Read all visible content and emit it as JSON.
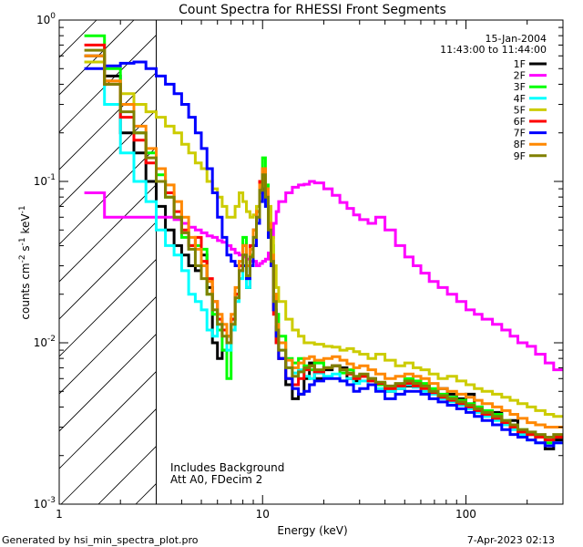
{
  "chart_data": {
    "type": "line",
    "title": "Count Spectra for RHESSI Front Segments",
    "xlabel": "Energy (keV)",
    "ylabel": "counts cm-2 s-1 keV-1",
    "xscale": "log",
    "yscale": "log",
    "xlim": [
      1,
      300
    ],
    "ylim": [
      0.001,
      1
    ],
    "x_ticks": [
      {
        "value": 1,
        "label": "1"
      },
      {
        "value": 10,
        "label": "10"
      },
      {
        "value": 100,
        "label": "100"
      }
    ],
    "y_ticks": [
      {
        "value": 1,
        "base": "10",
        "exp": "0"
      },
      {
        "value": 0.1,
        "base": "10",
        "exp": "-1"
      },
      {
        "value": 0.01,
        "base": "10",
        "exp": "-2"
      },
      {
        "value": 0.001,
        "base": "10",
        "exp": "-3"
      }
    ],
    "hatched_region": {
      "xmin": 1,
      "xmax": 3
    },
    "date": "15-Jan-2004",
    "time_range": "11:43:00 to 11:44:00",
    "annotations": [
      "Includes Background",
      "Att A0, FDecim 2"
    ],
    "footer_left": "Generated by hsi_min_spectra_plot.pro",
    "footer_right": "7-Apr-2023 02:13",
    "energy_bins": [
      1.33,
      1.67,
      2.0,
      2.33,
      2.67,
      3.0,
      3.33,
      3.67,
      4.0,
      4.33,
      4.67,
      5.0,
      5.33,
      5.67,
      6.0,
      6.33,
      6.67,
      7.0,
      7.33,
      7.67,
      8.0,
      8.33,
      8.67,
      9.0,
      9.33,
      9.67,
      10.0,
      10.33,
      10.67,
      11.0,
      11.33,
      11.67,
      12.0,
      13.0,
      14.0,
      15.0,
      16.0,
      17.0,
      18.0,
      20.0,
      22.0,
      24.0,
      26.0,
      28.0,
      30.0,
      33.0,
      36.0,
      40.0,
      45.0,
      50.0,
      55.0,
      60.0,
      66.0,
      73.0,
      81.0,
      90.0,
      100.0,
      110.0,
      120.0,
      135.0,
      150.0,
      165.0,
      180.0,
      200.0,
      220.0,
      245.0,
      270.0,
      300.0
    ],
    "series": [
      {
        "name": "1F",
        "color": "#000000",
        "values": [
          0.6,
          0.45,
          0.2,
          0.15,
          0.1,
          0.07,
          0.05,
          0.04,
          0.035,
          0.03,
          0.028,
          0.035,
          0.022,
          0.01,
          0.008,
          0.009,
          0.011,
          0.014,
          0.02,
          0.03,
          0.035,
          0.022,
          0.03,
          0.04,
          0.055,
          0.085,
          0.11,
          0.08,
          0.045,
          0.03,
          0.016,
          0.01,
          0.008,
          0.0055,
          0.0045,
          0.0048,
          0.006,
          0.0075,
          0.006,
          0.0068,
          0.0072,
          0.007,
          0.006,
          0.0058,
          0.0062,
          0.006,
          0.0056,
          0.005,
          0.0052,
          0.0054,
          0.0057,
          0.0055,
          0.005,
          0.0052,
          0.0048,
          0.0045,
          0.0048,
          0.004,
          0.0036,
          0.0037,
          0.0032,
          0.0033,
          0.0028,
          0.0027,
          0.0026,
          0.0022,
          0.0025
        ]
      },
      {
        "name": "2F",
        "color": "#ff00ff",
        "values": [
          0.085,
          0.06,
          0.06,
          0.06,
          0.06,
          0.06,
          0.06,
          0.058,
          0.055,
          0.052,
          0.05,
          0.048,
          0.046,
          0.045,
          0.043,
          0.042,
          0.04,
          0.038,
          0.036,
          0.035,
          0.034,
          0.033,
          0.032,
          0.032,
          0.03,
          0.031,
          0.032,
          0.033,
          0.036,
          0.045,
          0.055,
          0.065,
          0.075,
          0.085,
          0.092,
          0.095,
          0.096,
          0.1,
          0.098,
          0.09,
          0.082,
          0.074,
          0.068,
          0.062,
          0.058,
          0.055,
          0.06,
          0.05,
          0.04,
          0.034,
          0.03,
          0.027,
          0.024,
          0.022,
          0.02,
          0.018,
          0.016,
          0.015,
          0.014,
          0.013,
          0.012,
          0.011,
          0.01,
          0.0095,
          0.0085,
          0.0075,
          0.0068
        ]
      },
      {
        "name": "3F",
        "color": "#00ff00",
        "values": [
          0.8,
          0.5,
          0.3,
          0.2,
          0.15,
          0.11,
          0.08,
          0.06,
          0.045,
          0.04,
          0.04,
          0.038,
          0.02,
          0.015,
          0.012,
          0.009,
          0.006,
          0.012,
          0.02,
          0.03,
          0.045,
          0.025,
          0.035,
          0.05,
          0.065,
          0.1,
          0.14,
          0.095,
          0.06,
          0.04,
          0.02,
          0.015,
          0.011,
          0.008,
          0.0075,
          0.008,
          0.0072,
          0.0068,
          0.0075,
          0.007,
          0.0072,
          0.0065,
          0.0068,
          0.006,
          0.0063,
          0.0058,
          0.0055,
          0.0052,
          0.0055,
          0.006,
          0.0058,
          0.0056,
          0.0052,
          0.0048,
          0.0046,
          0.0044,
          0.0042,
          0.004,
          0.0038,
          0.0036,
          0.0033,
          0.0031,
          0.0029,
          0.0027,
          0.0026,
          0.0024,
          0.0026
        ]
      },
      {
        "name": "4F",
        "color": "#00ffff",
        "values": [
          0.55,
          0.3,
          0.15,
          0.1,
          0.075,
          0.05,
          0.04,
          0.035,
          0.028,
          0.02,
          0.018,
          0.016,
          0.012,
          0.011,
          0.014,
          0.012,
          0.009,
          0.012,
          0.018,
          0.025,
          0.03,
          0.022,
          0.03,
          0.045,
          0.06,
          0.085,
          0.1,
          0.07,
          0.045,
          0.03,
          0.018,
          0.012,
          0.009,
          0.007,
          0.0065,
          0.0068,
          0.0062,
          0.006,
          0.0065,
          0.0062,
          0.0064,
          0.0058,
          0.006,
          0.0056,
          0.0058,
          0.0055,
          0.0052,
          0.005,
          0.0052,
          0.0055,
          0.0053,
          0.005,
          0.0048,
          0.0045,
          0.0043,
          0.0041,
          0.0039,
          0.0037,
          0.0035,
          0.0033,
          0.0031,
          0.0029,
          0.0027,
          0.0025,
          0.0024,
          0.0023,
          0.0024
        ]
      },
      {
        "name": "5F",
        "color": "#cccc00",
        "values": [
          0.55,
          0.4,
          0.35,
          0.3,
          0.27,
          0.25,
          0.22,
          0.2,
          0.17,
          0.15,
          0.13,
          0.12,
          0.1,
          0.09,
          0.08,
          0.07,
          0.06,
          0.06,
          0.07,
          0.085,
          0.075,
          0.065,
          0.06,
          0.062,
          0.07,
          0.085,
          0.1,
          0.09,
          0.07,
          0.045,
          0.03,
          0.022,
          0.018,
          0.014,
          0.012,
          0.011,
          0.01,
          0.01,
          0.0098,
          0.0095,
          0.0094,
          0.009,
          0.0092,
          0.0088,
          0.0085,
          0.008,
          0.0085,
          0.0078,
          0.0072,
          0.0075,
          0.007,
          0.0068,
          0.0064,
          0.006,
          0.0062,
          0.0058,
          0.0055,
          0.0052,
          0.005,
          0.0048,
          0.0046,
          0.0044,
          0.0042,
          0.004,
          0.0038,
          0.0036,
          0.0035
        ]
      },
      {
        "name": "6F",
        "color": "#ff0000",
        "values": [
          0.7,
          0.4,
          0.25,
          0.18,
          0.13,
          0.1,
          0.085,
          0.065,
          0.05,
          0.04,
          0.045,
          0.032,
          0.025,
          0.018,
          0.014,
          0.012,
          0.01,
          0.014,
          0.02,
          0.03,
          0.04,
          0.03,
          0.04,
          0.05,
          0.065,
          0.1,
          0.12,
          0.085,
          0.05,
          0.03,
          0.015,
          0.01,
          0.008,
          0.006,
          0.0055,
          0.006,
          0.0068,
          0.0072,
          0.0066,
          0.007,
          0.0072,
          0.0068,
          0.0064,
          0.006,
          0.0062,
          0.0058,
          0.0056,
          0.0052,
          0.0054,
          0.0056,
          0.0054,
          0.0052,
          0.0049,
          0.0046,
          0.0044,
          0.0042,
          0.004,
          0.0038,
          0.0036,
          0.0034,
          0.0032,
          0.003,
          0.0028,
          0.0027,
          0.0026,
          0.0025,
          0.0026
        ]
      },
      {
        "name": "7F",
        "color": "#0000ff",
        "values": [
          0.5,
          0.52,
          0.54,
          0.55,
          0.5,
          0.45,
          0.4,
          0.35,
          0.3,
          0.25,
          0.2,
          0.16,
          0.12,
          0.085,
          0.06,
          0.045,
          0.035,
          0.032,
          0.03,
          0.028,
          0.03,
          0.025,
          0.03,
          0.04,
          0.055,
          0.075,
          0.09,
          0.07,
          0.045,
          0.03,
          0.016,
          0.011,
          0.008,
          0.006,
          0.0052,
          0.0048,
          0.005,
          0.0055,
          0.0058,
          0.006,
          0.006,
          0.0058,
          0.0055,
          0.005,
          0.0052,
          0.0055,
          0.005,
          0.0045,
          0.0048,
          0.005,
          0.005,
          0.0048,
          0.0045,
          0.0043,
          0.0041,
          0.0039,
          0.0037,
          0.0035,
          0.0033,
          0.0031,
          0.0029,
          0.0027,
          0.0026,
          0.0025,
          0.0024,
          0.0023,
          0.0024
        ]
      },
      {
        "name": "8F",
        "color": "#ff8800",
        "values": [
          0.6,
          0.42,
          0.3,
          0.22,
          0.16,
          0.12,
          0.095,
          0.075,
          0.06,
          0.045,
          0.038,
          0.03,
          0.024,
          0.018,
          0.015,
          0.013,
          0.011,
          0.015,
          0.022,
          0.032,
          0.04,
          0.03,
          0.038,
          0.05,
          0.065,
          0.095,
          0.12,
          0.09,
          0.055,
          0.035,
          0.02,
          0.013,
          0.01,
          0.0078,
          0.007,
          0.0075,
          0.008,
          0.0082,
          0.0078,
          0.008,
          0.0082,
          0.0078,
          0.0074,
          0.007,
          0.0072,
          0.0068,
          0.0064,
          0.006,
          0.0062,
          0.0064,
          0.0062,
          0.006,
          0.0056,
          0.0052,
          0.005,
          0.0048,
          0.0046,
          0.0044,
          0.0042,
          0.004,
          0.0038,
          0.0036,
          0.0034,
          0.0032,
          0.0031,
          0.003,
          0.003
        ]
      },
      {
        "name": "9F",
        "color": "#808000",
        "values": [
          0.65,
          0.4,
          0.27,
          0.2,
          0.14,
          0.1,
          0.08,
          0.06,
          0.048,
          0.038,
          0.03,
          0.025,
          0.02,
          0.016,
          0.013,
          0.011,
          0.01,
          0.013,
          0.019,
          0.028,
          0.035,
          0.026,
          0.034,
          0.045,
          0.06,
          0.088,
          0.11,
          0.08,
          0.05,
          0.032,
          0.018,
          0.012,
          0.009,
          0.007,
          0.0062,
          0.0066,
          0.007,
          0.0072,
          0.0068,
          0.007,
          0.0072,
          0.0068,
          0.0065,
          0.0062,
          0.0064,
          0.006,
          0.0057,
          0.0054,
          0.0056,
          0.0058,
          0.0056,
          0.0054,
          0.005,
          0.0047,
          0.0045,
          0.0043,
          0.0041,
          0.0039,
          0.0037,
          0.0035,
          0.0033,
          0.0031,
          0.0029,
          0.0028,
          0.0027,
          0.0026,
          0.0027
        ]
      }
    ]
  }
}
